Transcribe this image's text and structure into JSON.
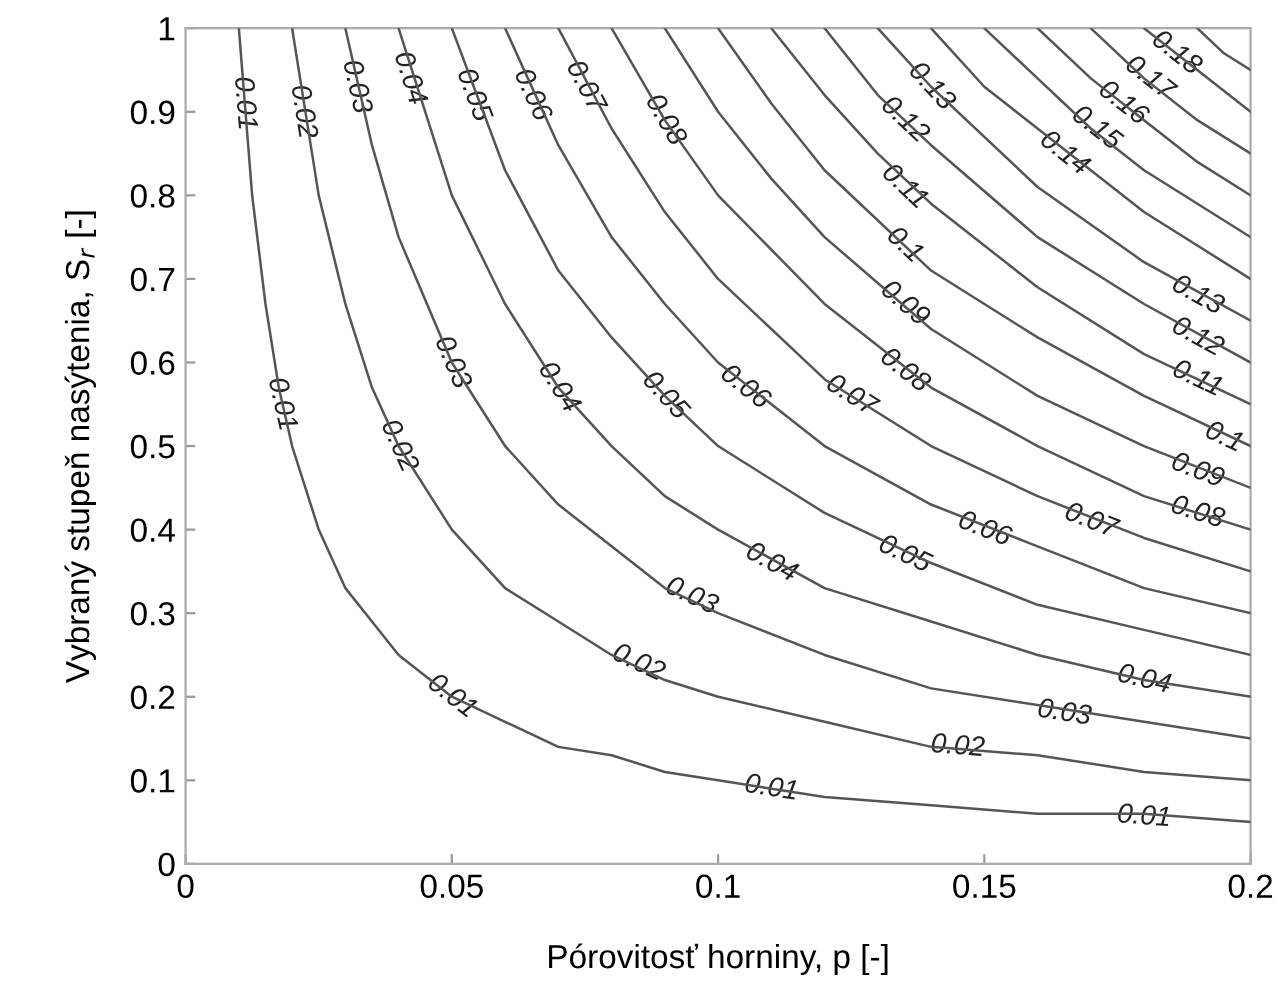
{
  "chart_data": {
    "type": "line",
    "xlabel": "Pórovitosť horniny, p [-]",
    "ylabel": "Vybraný stupeň nasýtenia, S$_{r}$ [-]",
    "xlim": [
      0,
      0.2
    ],
    "ylim": [
      0,
      1
    ],
    "xticks": [
      0,
      0.05,
      0.1,
      0.15,
      0.2
    ],
    "yticks": [
      0,
      0.1,
      0.2,
      0.3,
      0.4,
      0.5,
      0.6,
      0.7,
      0.8,
      0.9,
      1
    ],
    "grid": false,
    "legend": false,
    "marker": "none",
    "line_style": "solid",
    "series": [
      {
        "color": "#555555",
        "x": [
          0.01,
          0.0125,
          0.015,
          0.0175,
          0.02,
          0.025,
          0.03,
          0.035,
          0.04,
          0.05,
          0.06,
          0.07,
          0.08,
          0.09,
          0.1,
          0.12,
          0.14,
          0.16,
          0.18,
          0.2
        ],
        "values": [
          1,
          0.8,
          0.67,
          0.57,
          0.5,
          0.4,
          0.33,
          0.29,
          0.25,
          0.2,
          0.17,
          0.14,
          0.13,
          0.11,
          0.1,
          0.08,
          0.07,
          0.06,
          0.06,
          0.05
        ]
      },
      {
        "color": "#555555",
        "x": [
          0.02,
          0.025,
          0.03,
          0.035,
          0.04,
          0.05,
          0.06,
          0.07,
          0.08,
          0.09,
          0.1,
          0.12,
          0.14,
          0.16,
          0.18,
          0.2
        ],
        "values": [
          1,
          0.8,
          0.67,
          0.57,
          0.5,
          0.4,
          0.33,
          0.29,
          0.25,
          0.22,
          0.2,
          0.17,
          0.14,
          0.13,
          0.11,
          0.1
        ]
      },
      {
        "color": "#555555",
        "x": [
          0.03,
          0.035,
          0.04,
          0.05,
          0.06,
          0.07,
          0.08,
          0.09,
          0.1,
          0.12,
          0.14,
          0.16,
          0.18,
          0.2
        ],
        "values": [
          1,
          0.86,
          0.75,
          0.6,
          0.5,
          0.43,
          0.38,
          0.33,
          0.3,
          0.25,
          0.21,
          0.19,
          0.17,
          0.15
        ]
      },
      {
        "color": "#555555",
        "x": [
          0.04,
          0.05,
          0.06,
          0.07,
          0.08,
          0.09,
          0.1,
          0.12,
          0.14,
          0.16,
          0.18,
          0.2
        ],
        "values": [
          1,
          0.8,
          0.67,
          0.57,
          0.5,
          0.44,
          0.4,
          0.33,
          0.29,
          0.25,
          0.22,
          0.2
        ]
      },
      {
        "color": "#555555",
        "x": [
          0.05,
          0.06,
          0.07,
          0.08,
          0.09,
          0.1,
          0.12,
          0.14,
          0.16,
          0.18,
          0.2
        ],
        "values": [
          1,
          0.83,
          0.71,
          0.63,
          0.56,
          0.5,
          0.42,
          0.36,
          0.31,
          0.28,
          0.25
        ]
      },
      {
        "color": "#555555",
        "x": [
          0.06,
          0.07,
          0.08,
          0.09,
          0.1,
          0.12,
          0.14,
          0.16,
          0.18,
          0.2
        ],
        "values": [
          1,
          0.86,
          0.75,
          0.67,
          0.6,
          0.5,
          0.43,
          0.38,
          0.33,
          0.3
        ]
      },
      {
        "color": "#555555",
        "x": [
          0.07,
          0.08,
          0.09,
          0.1,
          0.12,
          0.14,
          0.16,
          0.18,
          0.2
        ],
        "values": [
          1,
          0.88,
          0.78,
          0.7,
          0.58,
          0.5,
          0.44,
          0.39,
          0.35
        ]
      },
      {
        "color": "#555555",
        "x": [
          0.08,
          0.09,
          0.1,
          0.12,
          0.14,
          0.16,
          0.18,
          0.2
        ],
        "values": [
          1,
          0.89,
          0.8,
          0.67,
          0.57,
          0.5,
          0.44,
          0.4
        ]
      },
      {
        "color": "#555555",
        "x": [
          0.09,
          0.1,
          0.11,
          0.12,
          0.14,
          0.16,
          0.18,
          0.2
        ],
        "values": [
          1,
          0.9,
          0.82,
          0.75,
          0.64,
          0.56,
          0.5,
          0.45
        ]
      },
      {
        "color": "#555555",
        "x": [
          0.1,
          0.11,
          0.12,
          0.14,
          0.16,
          0.18,
          0.2
        ],
        "values": [
          1,
          0.91,
          0.83,
          0.71,
          0.63,
          0.56,
          0.5
        ]
      },
      {
        "color": "#555555",
        "x": [
          0.11,
          0.12,
          0.13,
          0.14,
          0.16,
          0.18,
          0.2
        ],
        "values": [
          1,
          0.92,
          0.85,
          0.79,
          0.69,
          0.61,
          0.55
        ]
      },
      {
        "color": "#555555",
        "x": [
          0.12,
          0.13,
          0.14,
          0.16,
          0.18,
          0.2
        ],
        "values": [
          1,
          0.92,
          0.86,
          0.75,
          0.67,
          0.6
        ]
      },
      {
        "color": "#555555",
        "x": [
          0.13,
          0.14,
          0.15,
          0.16,
          0.18,
          0.2
        ],
        "values": [
          1,
          0.93,
          0.87,
          0.81,
          0.72,
          0.65
        ]
      },
      {
        "color": "#555555",
        "x": [
          0.14,
          0.15,
          0.16,
          0.18,
          0.2
        ],
        "values": [
          1,
          0.93,
          0.88,
          0.78,
          0.7
        ]
      },
      {
        "color": "#555555",
        "x": [
          0.15,
          0.16,
          0.17,
          0.18,
          0.2
        ],
        "values": [
          1,
          0.94,
          0.88,
          0.83,
          0.75
        ]
      },
      {
        "color": "#555555",
        "x": [
          0.16,
          0.17,
          0.18,
          0.19,
          0.2
        ],
        "values": [
          1,
          0.94,
          0.89,
          0.84,
          0.8
        ]
      },
      {
        "color": "#555555",
        "x": [
          0.17,
          0.18,
          0.19,
          0.2
        ],
        "values": [
          1,
          0.94,
          0.89,
          0.85
        ]
      },
      {
        "color": "#555555",
        "x": [
          0.18,
          0.19,
          0.2
        ],
        "values": [
          1,
          0.95,
          0.9
        ]
      },
      {
        "color": "#555555",
        "x": [
          0.19,
          0.195,
          0.2
        ],
        "values": [
          1,
          0.97,
          0.95
        ]
      }
    ],
    "annotations": [
      {
        "text": "0.01",
        "x": 0.011,
        "y": 0.91
      },
      {
        "text": "0.02",
        "x": 0.022,
        "y": 0.9
      },
      {
        "text": "0.03",
        "x": 0.032,
        "y": 0.93
      },
      {
        "text": "0.04",
        "x": 0.042,
        "y": 0.94
      },
      {
        "text": "0.05",
        "x": 0.054,
        "y": 0.92
      },
      {
        "text": "0.06",
        "x": 0.065,
        "y": 0.92
      },
      {
        "text": "0.07",
        "x": 0.075,
        "y": 0.93
      },
      {
        "text": "0.08",
        "x": 0.09,
        "y": 0.89
      },
      {
        "text": "0.01",
        "x": 0.018,
        "y": 0.55
      },
      {
        "text": "0.02",
        "x": 0.04,
        "y": 0.5
      },
      {
        "text": "0.03",
        "x": 0.05,
        "y": 0.6
      },
      {
        "text": "0.04",
        "x": 0.07,
        "y": 0.57
      },
      {
        "text": "0.05",
        "x": 0.09,
        "y": 0.56
      },
      {
        "text": "0.06",
        "x": 0.105,
        "y": 0.57
      },
      {
        "text": "0.07",
        "x": 0.125,
        "y": 0.56
      },
      {
        "text": "0.08",
        "x": 0.135,
        "y": 0.59
      },
      {
        "text": "0.09",
        "x": 0.135,
        "y": 0.67
      },
      {
        "text": "0.1",
        "x": 0.135,
        "y": 0.74
      },
      {
        "text": "0.11",
        "x": 0.135,
        "y": 0.81
      },
      {
        "text": "0.12",
        "x": 0.135,
        "y": 0.89
      },
      {
        "text": "0.13",
        "x": 0.14,
        "y": 0.93
      },
      {
        "text": "0.18",
        "x": 0.186,
        "y": 0.97
      },
      {
        "text": "0.17",
        "x": 0.181,
        "y": 0.94
      },
      {
        "text": "0.16",
        "x": 0.176,
        "y": 0.91
      },
      {
        "text": "0.15",
        "x": 0.171,
        "y": 0.88
      },
      {
        "text": "0.14",
        "x": 0.165,
        "y": 0.85
      },
      {
        "text": "0.13",
        "x": 0.19,
        "y": 0.68
      },
      {
        "text": "0.12",
        "x": 0.19,
        "y": 0.63
      },
      {
        "text": "0.11",
        "x": 0.19,
        "y": 0.58
      },
      {
        "text": "0.1",
        "x": 0.195,
        "y": 0.51
      },
      {
        "text": "0.09",
        "x": 0.19,
        "y": 0.47
      },
      {
        "text": "0.08",
        "x": 0.19,
        "y": 0.42
      },
      {
        "text": "0.07",
        "x": 0.17,
        "y": 0.41
      },
      {
        "text": "0.06",
        "x": 0.15,
        "y": 0.4
      },
      {
        "text": "0.05",
        "x": 0.135,
        "y": 0.37
      },
      {
        "text": "0.04",
        "x": 0.11,
        "y": 0.36
      },
      {
        "text": "0.03",
        "x": 0.095,
        "y": 0.32
      },
      {
        "text": "0.02",
        "x": 0.085,
        "y": 0.24
      },
      {
        "text": "0.01",
        "x": 0.05,
        "y": 0.2
      },
      {
        "text": "0.04",
        "x": 0.18,
        "y": 0.22
      },
      {
        "text": "0.03",
        "x": 0.165,
        "y": 0.18
      },
      {
        "text": "0.02",
        "x": 0.145,
        "y": 0.14
      },
      {
        "text": "0.01",
        "x": 0.11,
        "y": 0.09
      },
      {
        "text": "0.01",
        "x": 0.18,
        "y": 0.056
      }
    ]
  }
}
